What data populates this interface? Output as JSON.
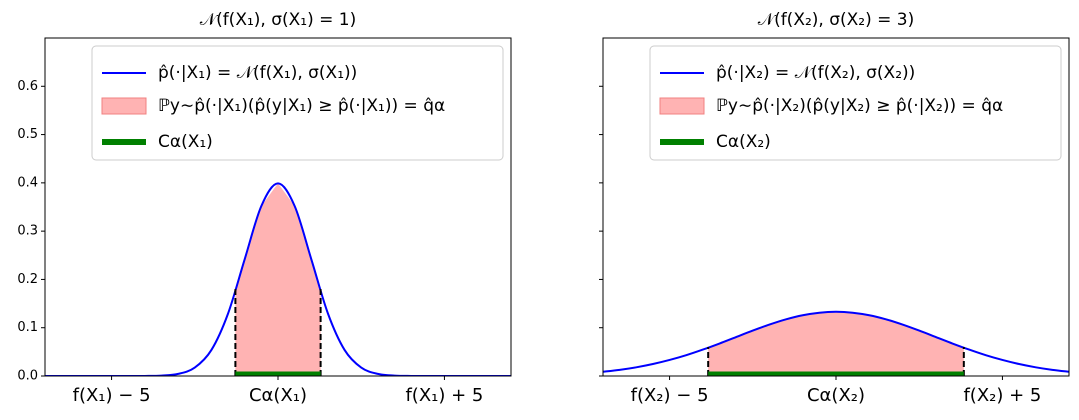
{
  "chart_data": [
    {
      "type": "line",
      "title": "𝒩(f(X₁), σ(X₁) = 1)",
      "x": [
        -7,
        -6.5,
        -6,
        -5.5,
        -5,
        -4.5,
        -4,
        -3.5,
        -3,
        -2.5,
        -2,
        -1.5,
        -1,
        -0.5,
        0,
        0.5,
        1,
        1.5,
        2,
        2.5,
        3,
        3.5,
        4,
        4.5,
        5,
        5.5,
        6,
        6.5,
        7
      ],
      "series": [
        {
          "name": "p̂(·|X₁) = 𝒩(f(X₁), σ(X₁))",
          "color": "#0000ff",
          "values": [
            0,
            0,
            0,
            0,
            0,
            0,
            0.0001,
            0.0009,
            0.0044,
            0.0175,
            0.054,
            0.1295,
            0.242,
            0.3521,
            0.3989,
            0.3521,
            0.242,
            0.1295,
            0.054,
            0.0175,
            0.0044,
            0.0009,
            0.0001,
            0,
            0,
            0,
            0,
            0,
            0
          ]
        },
        {
          "name": "ℙy∼p̂(·|X₁)(p̂(y|X₁) ≥ p̂(·|X₁)) = q̂α",
          "color": "#ffb3b3",
          "lower": -1.28,
          "upper": 1.28,
          "edge_values": [
            0.18,
            0.18
          ]
        },
        {
          "name": "Cα(X₁)",
          "color": "#008000"
        }
      ],
      "xlim": [
        -7,
        7
      ],
      "xticks": [
        {
          "value": -5,
          "label": "f(X₁) − 5"
        },
        {
          "value": 0,
          "label": "Cα(X₁)"
        },
        {
          "value": 5,
          "label": "f(X₁) + 5"
        }
      ],
      "ylim": [
        0,
        0.7
      ],
      "yticks": [
        {
          "value": 0,
          "label": "0.0"
        },
        0.1,
        0.2,
        0.3,
        0.4,
        0.5,
        0.6
      ],
      "legend": "upper right"
    },
    {
      "type": "line",
      "title": "𝒩(f(X₂), σ(X₂) = 3)",
      "x": [
        -7,
        -6.5,
        -6,
        -5.5,
        -5,
        -4.5,
        -4,
        -3.5,
        -3,
        -2.5,
        -2,
        -1.5,
        -1,
        -0.5,
        0,
        0.5,
        1,
        1.5,
        2,
        2.5,
        3,
        3.5,
        4,
        4.5,
        5,
        5.5,
        6,
        6.5,
        7
      ],
      "series": [
        {
          "name": "p̂(·|X₂) = 𝒩(f(X₂), σ(X₂))",
          "color": "#0000ff",
          "values": [
            0.0088,
            0.0127,
            0.018,
            0.0248,
            0.0332,
            0.0431,
            0.0547,
            0.0673,
            0.0807,
            0.094,
            0.1065,
            0.1174,
            0.1258,
            0.1311,
            0.133,
            0.1311,
            0.1258,
            0.1174,
            0.1065,
            0.094,
            0.0807,
            0.0673,
            0.0547,
            0.0431,
            0.0332,
            0.0248,
            0.018,
            0.0127,
            0.0088
          ]
        },
        {
          "name": "ℙy∼p̂(·|X₂)(p̂(y|X₂) ≥ p̂(·|X₂)) = q̂α",
          "color": "#ffb3b3",
          "lower": -3.84,
          "upper": 3.84,
          "edge_values": [
            0.06,
            0.06
          ]
        },
        {
          "name": "Cα(X₂)",
          "color": "#008000"
        }
      ],
      "xlim": [
        -7,
        7
      ],
      "xticks": [
        {
          "value": -5,
          "label": "f(X₂) − 5"
        },
        {
          "value": 0,
          "label": "Cα(X₂)"
        },
        {
          "value": 5,
          "label": "f(X₂) + 5"
        }
      ],
      "ylim": [
        0,
        0.7
      ],
      "yticks": [
        0,
        0.1,
        0.2,
        0.3,
        0.4,
        0.5,
        0.6
      ],
      "ytick_labels": false,
      "legend": "upper right"
    }
  ]
}
